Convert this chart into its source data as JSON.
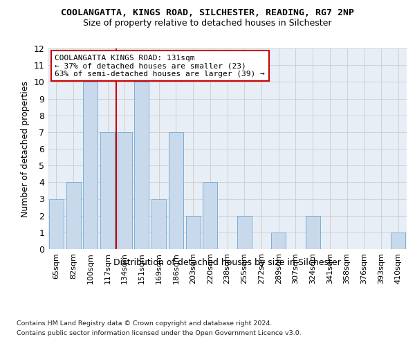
{
  "title": "COOLANGATTA, KINGS ROAD, SILCHESTER, READING, RG7 2NP",
  "subtitle": "Size of property relative to detached houses in Silchester",
  "xlabel_bottom": "Distribution of detached houses by size in Silchester",
  "ylabel": "Number of detached properties",
  "categories": [
    "65sqm",
    "82sqm",
    "100sqm",
    "117sqm",
    "134sqm",
    "151sqm",
    "169sqm",
    "186sqm",
    "203sqm",
    "220sqm",
    "238sqm",
    "255sqm",
    "272sqm",
    "289sqm",
    "307sqm",
    "324sqm",
    "341sqm",
    "358sqm",
    "376sqm",
    "393sqm",
    "410sqm"
  ],
  "values": [
    3,
    4,
    10,
    7,
    7,
    10,
    3,
    7,
    2,
    4,
    0,
    2,
    0,
    1,
    0,
    2,
    0,
    0,
    0,
    0,
    1
  ],
  "bar_color": "#c9d9ec",
  "bar_edge_color": "#7bafd4",
  "bar_edge_width": 0.7,
  "property_bin_index": 4,
  "red_line_color": "#cc0000",
  "annotation_box_color": "#ffffff",
  "annotation_box_edge_color": "#cc0000",
  "annotation_text_line1": "COOLANGATTA KINGS ROAD: 131sqm",
  "annotation_text_line2": "← 37% of detached houses are smaller (23)",
  "annotation_text_line3": "63% of semi-detached houses are larger (39) →",
  "ylim": [
    0,
    12
  ],
  "yticks": [
    0,
    1,
    2,
    3,
    4,
    5,
    6,
    7,
    8,
    9,
    10,
    11,
    12
  ],
  "grid_color": "#cccccc",
  "plot_bg_color": "#e8eef5",
  "fig_bg_color": "#ffffff",
  "footnote_line1": "Contains HM Land Registry data © Crown copyright and database right 2024.",
  "footnote_line2": "Contains public sector information licensed under the Open Government Licence v3.0."
}
